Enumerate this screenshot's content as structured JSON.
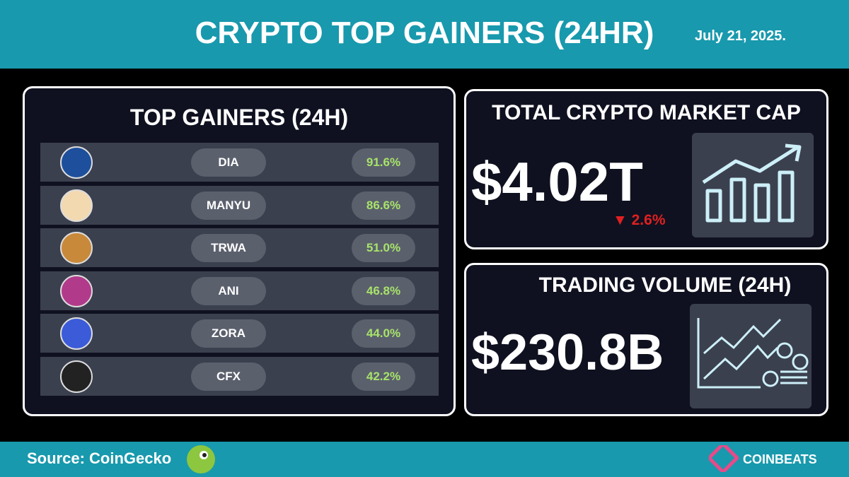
{
  "header": {
    "title": "CRYPTO TOP GAINERS (24HR)",
    "date": "July 21, 2025."
  },
  "gainers": {
    "title": "TOP GAINERS (24H)",
    "rows": [
      {
        "symbol": "DIA",
        "change": "91.6%"
      },
      {
        "symbol": "MANYU",
        "change": "86.6%"
      },
      {
        "symbol": "TRWA",
        "change": "51.0%"
      },
      {
        "symbol": "ANI",
        "change": "46.8%"
      },
      {
        "symbol": "ZORA",
        "change": "44.0%"
      },
      {
        "symbol": "CFX",
        "change": "42.2%"
      }
    ]
  },
  "market_cap": {
    "title": "TOTAL CRYPTO MARKET CAP",
    "value": "$4.02T",
    "change": "2.6%"
  },
  "volume": {
    "title": "TRADING VOLUME (24H)",
    "value": "$230.8B"
  },
  "footer": {
    "source": "Source: CoinGecko",
    "brand": "COINBEATS"
  }
}
